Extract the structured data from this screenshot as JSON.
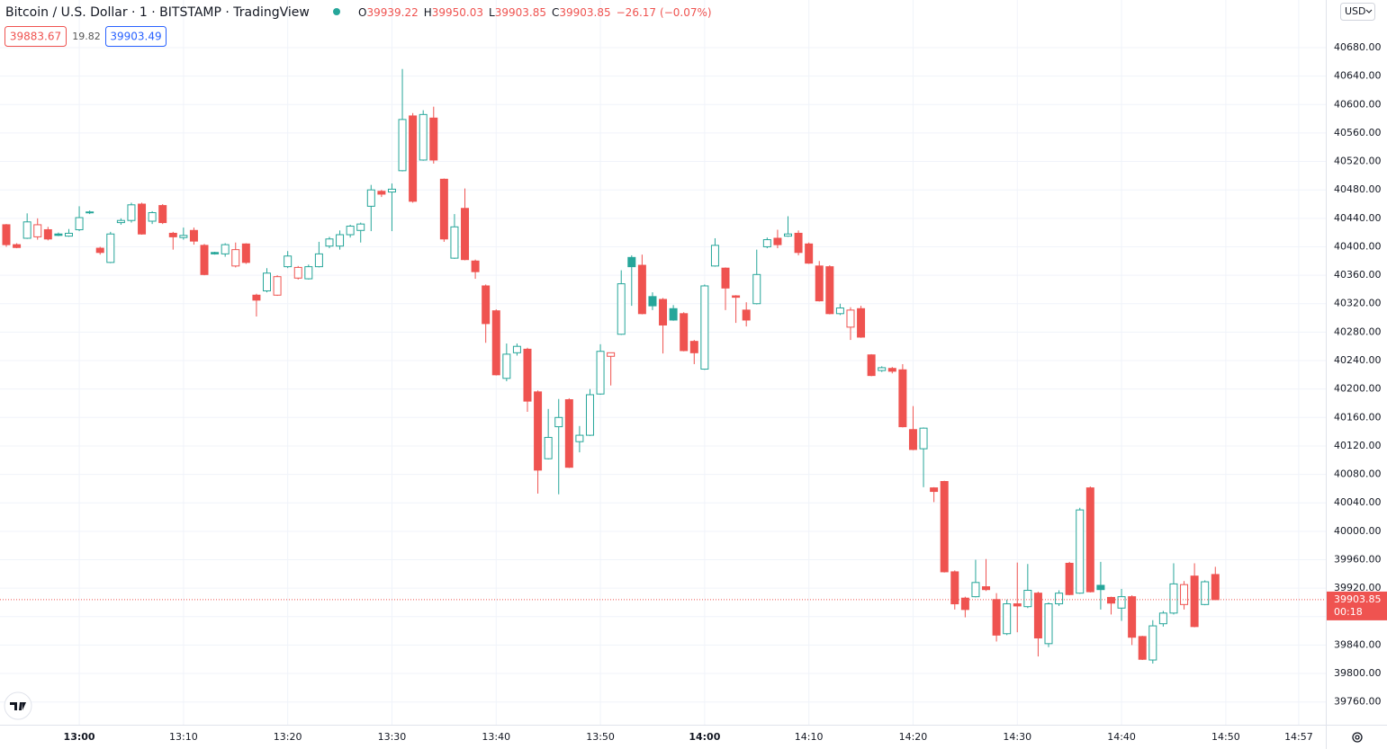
{
  "chart_data": {
    "type": "candlestick",
    "title": "Bitcoin / U.S. Dollar · 1 · BITSTAMP · TradingView",
    "ohlc_letters": [
      "O",
      "H",
      "L",
      "C"
    ],
    "change": {
      "value": -26.17,
      "label": "−26.17"
    },
    "change_pct": {
      "value": -0.07,
      "label": "(−0.07%)"
    },
    "bid": 39883.67,
    "spread": 19.82,
    "ask": 39903.49,
    "currency": "USD",
    "countdown": "00:18",
    "up_color": "#26a69a",
    "down_color": "#ef5350",
    "grid": true,
    "x": [
      "12:53",
      "12:54",
      "12:55",
      "12:56",
      "12:57",
      "12:58",
      "12:59",
      "13:00",
      "13:01",
      "13:02",
      "13:03",
      "13:04",
      "13:05",
      "13:06",
      "13:07",
      "13:08",
      "13:09",
      "13:10",
      "13:11",
      "13:12",
      "13:13",
      "13:14",
      "13:15",
      "13:16",
      "13:17",
      "13:18",
      "13:19",
      "13:20",
      "13:21",
      "13:22",
      "13:23",
      "13:24",
      "13:25",
      "13:26",
      "13:27",
      "13:28",
      "13:29",
      "13:30",
      "13:31",
      "13:32",
      "13:33",
      "13:34",
      "13:35",
      "13:36",
      "13:37",
      "13:38",
      "13:39",
      "13:40",
      "13:41",
      "13:42",
      "13:43",
      "13:44",
      "13:45",
      "13:46",
      "13:47",
      "13:48",
      "13:49",
      "13:50",
      "13:51",
      "13:52",
      "13:53",
      "13:54",
      "13:55",
      "13:56",
      "13:57",
      "13:58",
      "13:59",
      "14:00",
      "14:01",
      "14:02",
      "14:03",
      "14:04",
      "14:05",
      "14:06",
      "14:07",
      "14:08",
      "14:09",
      "14:10",
      "14:11",
      "14:12",
      "14:13",
      "14:14",
      "14:15",
      "14:16",
      "14:17",
      "14:18",
      "14:19",
      "14:20",
      "14:21",
      "14:22",
      "14:23",
      "14:24",
      "14:25",
      "14:26",
      "14:27",
      "14:28",
      "14:29",
      "14:30",
      "14:31",
      "14:32",
      "14:33",
      "14:34",
      "14:35",
      "14:36",
      "14:37",
      "14:38",
      "14:39",
      "14:40",
      "14:41",
      "14:42",
      "14:43",
      "14:44",
      "14:45",
      "14:46",
      "14:47",
      "14:48",
      "14:49"
    ],
    "open": [
      40431,
      40403,
      40412,
      40414,
      40424,
      40418,
      40415,
      40424,
      40448,
      40398,
      40378,
      40434,
      40437,
      40460,
      40436,
      40458,
      40419,
      40413,
      40423,
      40402,
      40392,
      40390,
      40373,
      40404,
      40332,
      40338,
      40332,
      40372,
      40356,
      40355,
      40372,
      40401,
      40401,
      40417,
      40423,
      40457,
      40478,
      40477,
      40507,
      40584,
      40522,
      40581,
      40495,
      40384,
      40454,
      40380,
      40345,
      40310,
      40215,
      40251,
      40256,
      40196,
      40102,
      40147,
      40185,
      40126,
      40135,
      40193,
      40246,
      40277,
      40385,
      40374,
      40330,
      40326,
      40313,
      40306,
      40267,
      40228,
      40373,
      40370,
      40331,
      40311,
      40320,
      40400,
      40412,
      40415,
      40419,
      40404,
      40373,
      40372,
      40306,
      40287,
      40313,
      40248,
      40226,
      40229,
      40227,
      40143,
      40116,
      40061,
      40070,
      39943,
      39906,
      39908,
      39922,
      39904,
      39856,
      39898,
      39894,
      39913,
      39842,
      39898,
      39955,
      39913,
      40061,
      39924,
      39907,
      39892,
      39908,
      39852,
      39819,
      39870,
      39885,
      39897,
      39937,
      39897,
      39939.22
    ],
    "high": [
      40432,
      40405,
      40447,
      40440,
      40428,
      40420,
      40425,
      40457,
      40451,
      40400,
      40421,
      40440,
      40462,
      40462,
      40450,
      40460,
      40421,
      40427,
      40427,
      40404,
      40393,
      40405,
      40406,
      40405,
      40334,
      40370,
      40360,
      40394,
      40373,
      40375,
      40407,
      40414,
      40423,
      40431,
      40434,
      40487,
      40480,
      40489,
      40650,
      40588,
      40592,
      40597,
      40496,
      40446,
      40482,
      40382,
      40347,
      40312,
      40264,
      40264,
      40258,
      40198,
      40172,
      40186,
      40187,
      40148,
      40200,
      40263,
      40251,
      40367,
      40388,
      40389,
      40336,
      40328,
      40318,
      40308,
      40269,
      40347,
      40412,
      40371,
      40332,
      40322,
      40396,
      40413,
      40424,
      40443,
      40423,
      40406,
      40380,
      40374,
      40320,
      40315,
      40317,
      40249,
      40232,
      40231,
      40235,
      40176,
      40146,
      40062,
      40071,
      39945,
      39908,
      39960,
      39961,
      39913,
      39904,
      39956,
      39954,
      39915,
      39900,
      39917,
      39957,
      40033,
      40063,
      39957,
      39908,
      39919,
      39910,
      39853,
      39875,
      39888,
      39955,
      39930,
      39955,
      39931,
      39950.03
    ],
    "low": [
      40400,
      40398,
      40411,
      40410,
      40409,
      40415,
      40414,
      40422,
      40446,
      40389,
      40377,
      40431,
      40434,
      40417,
      40432,
      40432,
      40396,
      40410,
      40403,
      40360,
      40389,
      40386,
      40371,
      40376,
      40302,
      40336,
      40331,
      40370,
      40354,
      40354,
      40371,
      40398,
      40396,
      40413,
      40406,
      40422,
      40470,
      40422,
      40506,
      40462,
      40521,
      40517,
      40407,
      40383,
      40381,
      40355,
      40265,
      40219,
      40211,
      40247,
      40168,
      40053,
      40101,
      40052,
      40089,
      40111,
      40134,
      40192,
      40205,
      40276,
      40317,
      40305,
      40311,
      40250,
      40296,
      40253,
      40235,
      40227,
      40372,
      40311,
      40293,
      40288,
      40319,
      40398,
      40398,
      40414,
      40388,
      40376,
      40323,
      40305,
      40304,
      40269,
      40272,
      40218,
      40224,
      40222,
      40146,
      40114,
      40062,
      40041,
      39942,
      39890,
      39879,
      39907,
      39916,
      39845,
      39854,
      39858,
      39892,
      39824,
      39837,
      39895,
      39910,
      39912,
      39914,
      39890,
      39883,
      39874,
      39840,
      39819,
      39814,
      39866,
      39883,
      39890,
      39865,
      39896,
      39903.85
    ],
    "close": [
      40403,
      40399,
      40435,
      40431,
      40411,
      40416,
      40419,
      40441,
      40449,
      40392,
      40418,
      40437,
      40459,
      40418,
      40448,
      40434,
      40414,
      40416,
      40408,
      40361,
      40390,
      40403,
      40396,
      40378,
      40325,
      40363,
      40358,
      40387,
      40371,
      40372,
      40390,
      40411,
      40417,
      40429,
      40432,
      40480,
      40474,
      40481,
      40579,
      40464,
      40586,
      40522,
      40411,
      40428,
      40382,
      40365,
      40292,
      40220,
      40249,
      40260,
      40183,
      40086,
      40132,
      40160,
      40090,
      40135,
      40192,
      40253,
      40251,
      40348,
      40372,
      40306,
      40317,
      40290,
      40297,
      40254,
      40251,
      40345,
      40402,
      40342,
      40329,
      40297,
      40361,
      40410,
      40403,
      40418,
      40392,
      40377,
      40324,
      40306,
      40314,
      40311,
      40273,
      40219,
      40230,
      40225,
      40147,
      40115,
      40145,
      40056,
      39943,
      39898,
      39890,
      39928,
      39918,
      39854,
      39898,
      39895,
      39917,
      39850,
      39898,
      39913,
      39911,
      40030,
      39915,
      39918,
      39899,
      39908,
      39851,
      39820,
      39867,
      39885,
      39926,
      39925,
      39866,
      39929,
      39903.85
    ],
    "xticks": [
      "13:00",
      "13:10",
      "13:20",
      "13:30",
      "13:40",
      "13:50",
      "14:00",
      "14:10",
      "14:20",
      "14:30",
      "14:40",
      "14:50",
      "14:57"
    ],
    "ylim": [
      39728,
      40747
    ],
    "yticks": [
      {
        "value": 39760,
        "label": "39760.00"
      },
      {
        "value": 39800,
        "label": "39800.00"
      },
      {
        "value": 39840,
        "label": "39840.00"
      },
      {
        "value": 39880,
        "label": "39880.00"
      },
      {
        "value": 39920,
        "label": "39920.00"
      },
      {
        "value": 39960,
        "label": "39960.00"
      },
      {
        "value": 40000,
        "label": "40000.00"
      },
      {
        "value": 40040,
        "label": "40040.00"
      },
      {
        "value": 40080,
        "label": "40080.00"
      },
      {
        "value": 40120,
        "label": "40120.00"
      },
      {
        "value": 40160,
        "label": "40160.00"
      },
      {
        "value": 40200,
        "label": "40200.00"
      },
      {
        "value": 40240,
        "label": "40240.00"
      },
      {
        "value": 40280,
        "label": "40280.00"
      },
      {
        "value": 40320,
        "label": "40320.00"
      },
      {
        "value": 40360,
        "label": "40360.00"
      },
      {
        "value": 40400,
        "label": "40400.00"
      },
      {
        "value": 40440,
        "label": "40440.00"
      },
      {
        "value": 40480,
        "label": "40480.00"
      },
      {
        "value": 40520,
        "label": "40520.00"
      },
      {
        "value": 40560,
        "label": "40560.00"
      },
      {
        "value": 40600,
        "label": "40600.00"
      },
      {
        "value": 40640,
        "label": "40640.00"
      },
      {
        "value": 40680,
        "label": "40680.00"
      }
    ]
  }
}
